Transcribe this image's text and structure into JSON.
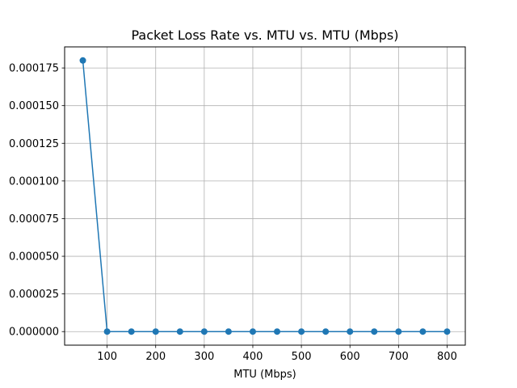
{
  "chart_data": {
    "type": "line",
    "title": "Packet Loss Rate vs. MTU vs. MTU (Mbps)",
    "xlabel": "MTU (Mbps)",
    "ylabel": "",
    "x": [
      50,
      100,
      150,
      200,
      250,
      300,
      350,
      400,
      450,
      500,
      550,
      600,
      650,
      700,
      750,
      800
    ],
    "series": [
      {
        "values": [
          0.00018,
          0,
          0,
          0,
          0,
          0,
          0,
          0,
          0,
          0,
          0,
          0,
          0,
          0,
          0,
          0
        ],
        "color": "#1f77b4",
        "marker": "circle"
      }
    ],
    "xlim": [
      12.5,
      837.5
    ],
    "ylim": [
      -9e-06,
      0.000189
    ],
    "xticks": [
      100,
      200,
      300,
      400,
      500,
      600,
      700,
      800
    ],
    "xtick_labels": [
      "100",
      "200",
      "300",
      "400",
      "500",
      "600",
      "700",
      "800"
    ],
    "yticks": [
      0,
      2.5e-05,
      5e-05,
      7.5e-05,
      0.0001,
      0.000125,
      0.00015,
      0.000175
    ],
    "ytick_labels": [
      "0.000000",
      "0.000025",
      "0.000050",
      "0.000075",
      "0.000100",
      "0.000125",
      "0.000150",
      "0.000175"
    ],
    "grid": true,
    "legend": "none"
  }
}
